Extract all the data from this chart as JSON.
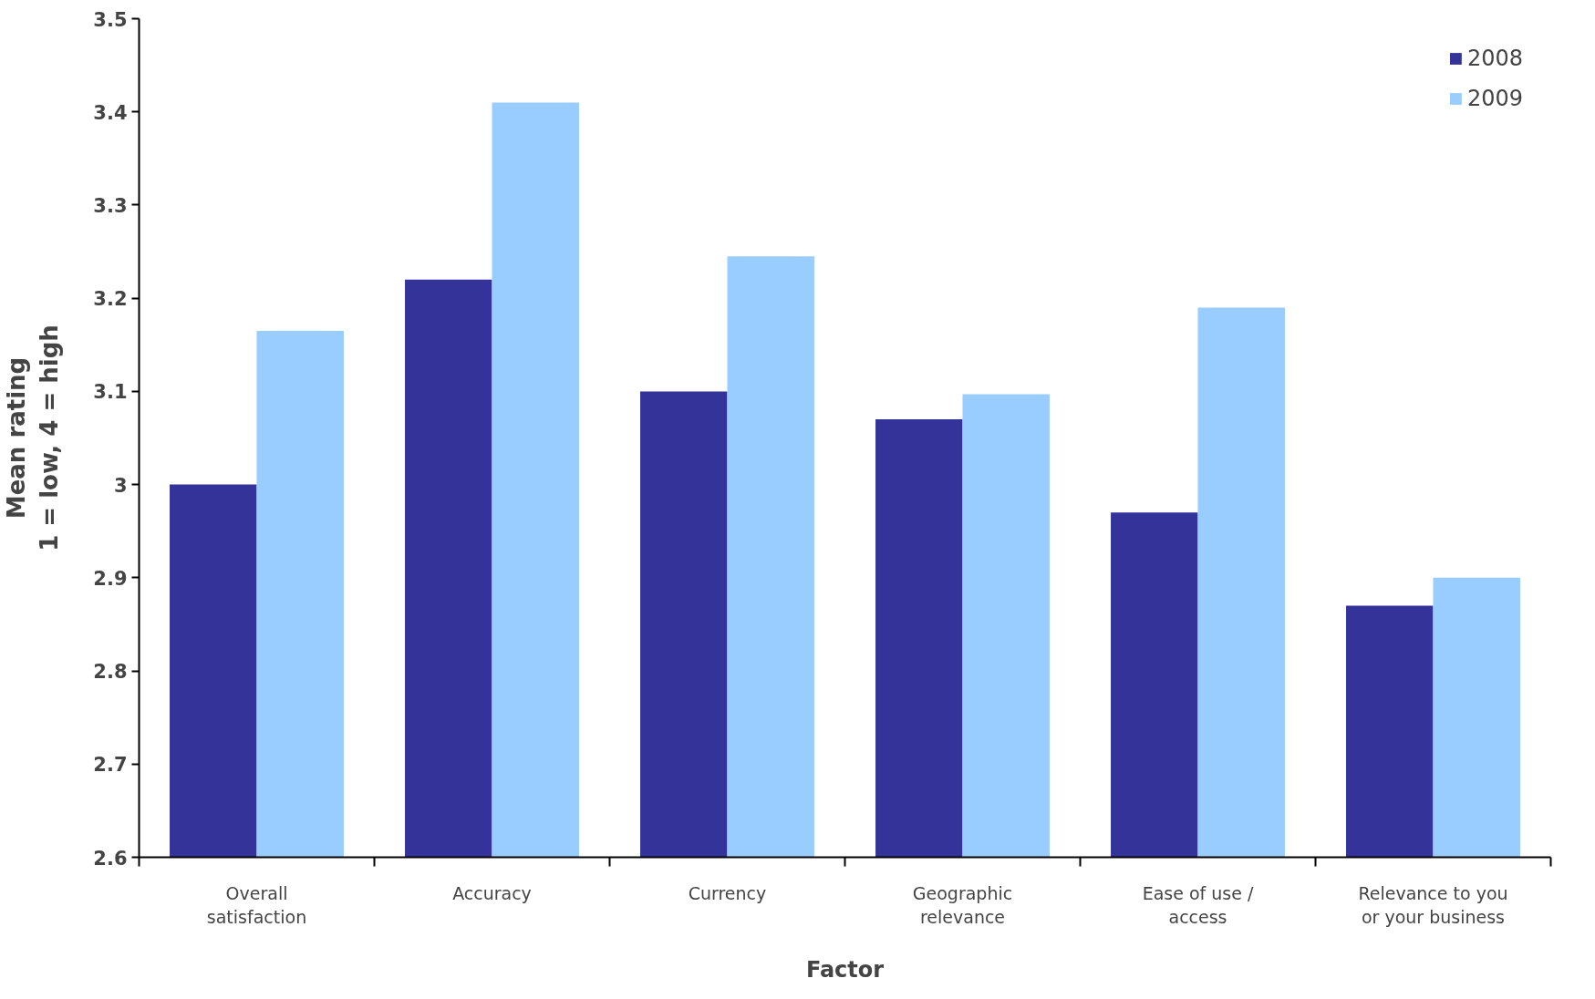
{
  "chart_data": {
    "type": "bar",
    "xlabel": "Factor",
    "ylabel": "Mean rating\n1 = low, 4 = high",
    "categories": [
      "Overall\nsatisfaction",
      "Accuracy",
      "Currency",
      "Geographic\nrelevance",
      "Ease of use /\naccess",
      "Relevance to you\nor your business"
    ],
    "series": [
      {
        "name": "2008",
        "color": "#333399",
        "values": [
          3.0,
          3.22,
          3.1,
          3.07,
          2.97,
          2.87
        ]
      },
      {
        "name": "2009",
        "color": "#99ccff",
        "values": [
          3.165,
          3.41,
          3.245,
          3.097,
          3.19,
          2.9
        ]
      }
    ],
    "ylim": [
      2.6,
      3.5
    ],
    "yticks": [
      2.6,
      2.7,
      2.8,
      2.9,
      3,
      3.1,
      3.2,
      3.3,
      3.4,
      3.5
    ],
    "grid": false,
    "legend": "top right"
  }
}
